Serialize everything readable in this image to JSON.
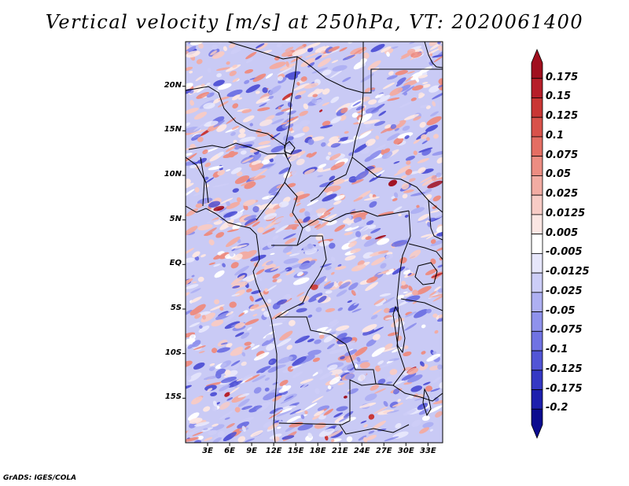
{
  "title": "Vertical velocity [m/s] at 250hPa, VT: 2020061400",
  "credit": "GrADS: IGES/COLA",
  "map": {
    "lat_range": [
      -20,
      25
    ],
    "lon_range": [
      0,
      35
    ],
    "lat_labels": [
      "20N",
      "15N",
      "10N",
      "5N",
      "EQ",
      "5S",
      "10S",
      "15S"
    ],
    "lat_values": [
      20,
      15,
      10,
      5,
      0,
      -5,
      -10,
      -15
    ],
    "lon_labels": [
      "3E",
      "6E",
      "9E",
      "12E",
      "15E",
      "18E",
      "21E",
      "24E",
      "27E",
      "30E",
      "33E"
    ],
    "lon_values": [
      3,
      6,
      9,
      12,
      15,
      18,
      21,
      24,
      27,
      30,
      33
    ]
  },
  "colorbar": {
    "labels": [
      "0.175",
      "0.15",
      "0.125",
      "0.1",
      "0.075",
      "0.05",
      "0.025",
      "0.0125",
      "0.005",
      "-0.005",
      "-0.0125",
      "-0.025",
      "-0.05",
      "-0.075",
      "-0.1",
      "-0.125",
      "-0.175",
      "-0.2"
    ],
    "colors": [
      "#a00f1e",
      "#b61e29",
      "#c93634",
      "#d8524a",
      "#e46e63",
      "#ec8d82",
      "#f2aca3",
      "#f7cbc5",
      "#fbe6e3",
      "#ffffff",
      "#e6e6fb",
      "#cccdf7",
      "#aeb0f2",
      "#8f92ec",
      "#7073e3",
      "#5255d6",
      "#3538c4",
      "#1d1fad",
      "#0b0b8f"
    ]
  }
}
